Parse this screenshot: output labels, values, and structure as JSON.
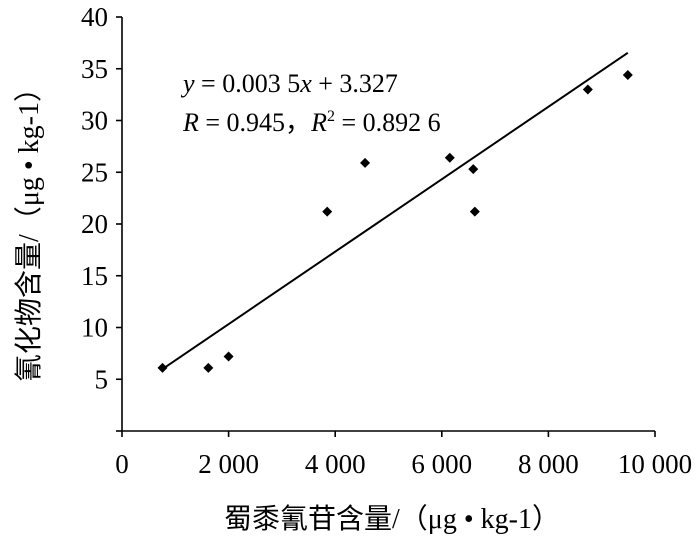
{
  "chart_data": {
    "type": "scatter",
    "title": "",
    "xlabel": "蜀黍氰苷含量/（μg • kg-1）",
    "ylabel": "氰化物含量/（μg • kg-1）",
    "xlim": [
      0,
      10000
    ],
    "ylim": [
      0,
      40
    ],
    "xticks": [
      0,
      2000,
      4000,
      6000,
      8000,
      10000
    ],
    "xtick_labels": [
      "0",
      "2 000",
      "4 000",
      "6 000",
      "8 000",
      "10 000"
    ],
    "yticks": [
      5,
      10,
      15,
      20,
      25,
      30,
      35,
      40
    ],
    "ytick_labels": [
      "5",
      "10",
      "15",
      "20",
      "25",
      "30",
      "35",
      "40"
    ],
    "grid": false,
    "marker": "diamond",
    "marker_color": "#000000",
    "points": [
      {
        "x": 760,
        "y": 6.1
      },
      {
        "x": 1620,
        "y": 6.1
      },
      {
        "x": 2000,
        "y": 7.2
      },
      {
        "x": 3850,
        "y": 21.2
      },
      {
        "x": 4560,
        "y": 25.9
      },
      {
        "x": 6150,
        "y": 26.4
      },
      {
        "x": 6590,
        "y": 25.3
      },
      {
        "x": 6620,
        "y": 21.2
      },
      {
        "x": 8740,
        "y": 33.0
      },
      {
        "x": 9490,
        "y": 34.4
      }
    ],
    "trendline": {
      "slope": 0.0035,
      "intercept": 3.327,
      "x_range": [
        760,
        9490
      ],
      "equation": {
        "y_var": "y",
        "eq_sign": " = ",
        "expr_head": "0.003 5",
        "x_var": "x",
        "expr_tail": " + 3.327",
        "r_var": "R",
        "r_value": " = 0.945，",
        "r2_base": "R",
        "r2_sup": "2",
        "r2_value": " = 0.892 6"
      }
    }
  }
}
